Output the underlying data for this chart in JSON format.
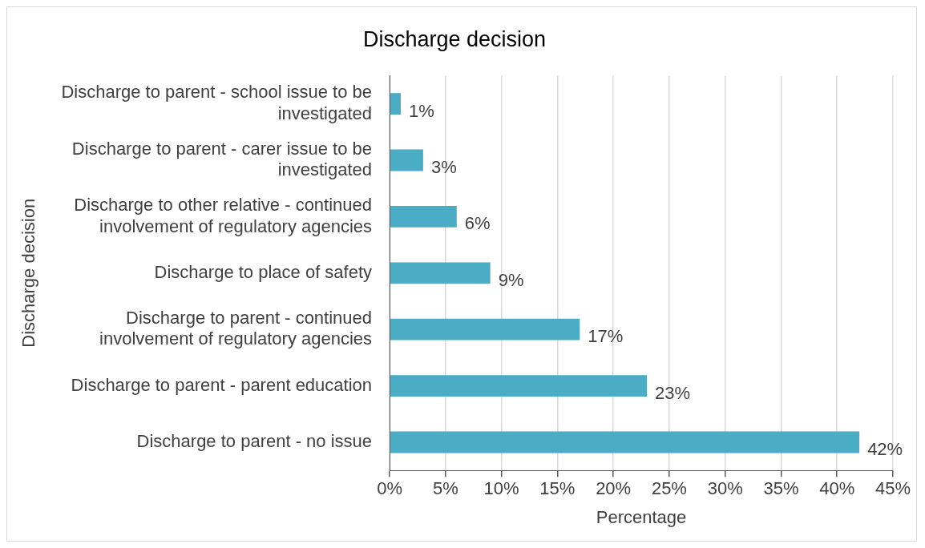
{
  "chart_data": {
    "type": "bar",
    "orientation": "horizontal",
    "title": "Discharge decision",
    "xlabel": "Percentage",
    "ylabel": "Discharge decision",
    "categories": [
      "Discharge to parent - school issue to be investigated",
      "Discharge to parent - carer issue to be investigated",
      "Discharge to other relative - continued involvement of regulatory agencies",
      "Discharge to place of safety",
      "Discharge to parent - continued involvement of regulatory agencies",
      "Discharge to parent - parent education",
      "Discharge to parent - no issue"
    ],
    "values": [
      1,
      3,
      6,
      9,
      17,
      23,
      42
    ],
    "value_labels": [
      "1%",
      "3%",
      "6%",
      "9%",
      "17%",
      "23%",
      "42%"
    ],
    "color": "#4bacc6",
    "xlim": [
      0,
      45
    ],
    "xticks": [
      {
        "value": 0,
        "label": "0%"
      },
      {
        "value": 5,
        "label": "5%"
      },
      {
        "value": 10,
        "label": "10%"
      },
      {
        "value": 15,
        "label": "15%"
      },
      {
        "value": 20,
        "label": "20%"
      },
      {
        "value": 25,
        "label": "25%"
      },
      {
        "value": 30,
        "label": "30%"
      },
      {
        "value": 35,
        "label": "35%"
      },
      {
        "value": 40,
        "label": "40%"
      },
      {
        "value": 45,
        "label": "45%"
      }
    ],
    "grid": "x",
    "legend": false
  }
}
